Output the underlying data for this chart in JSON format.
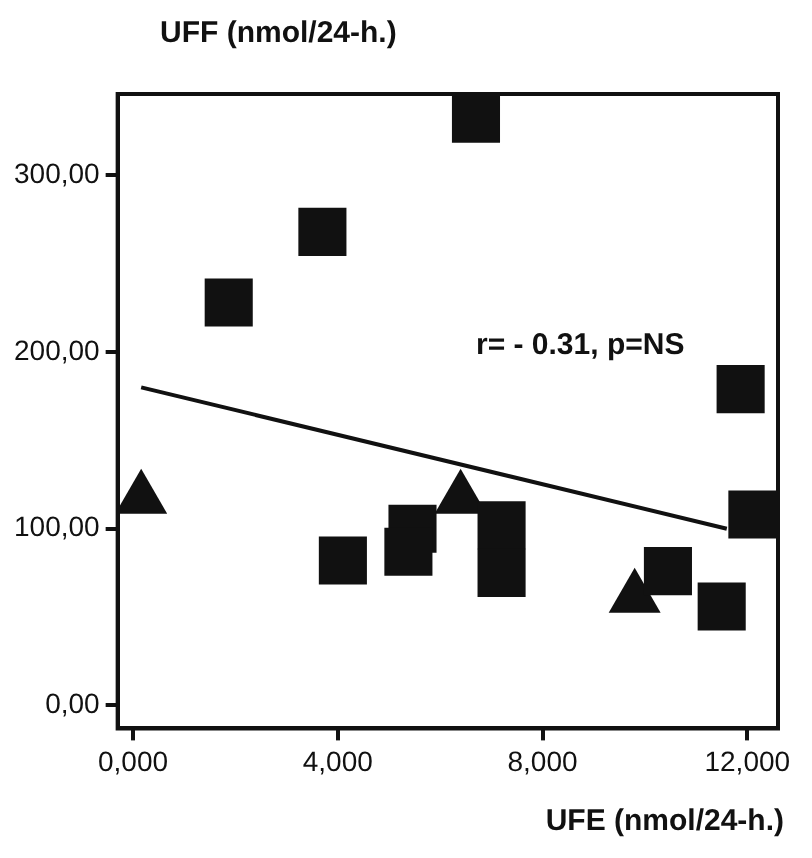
{
  "chart_data": {
    "type": "scatter",
    "xlabel": "UFE (nmol/24-h.)",
    "ylabel": "UFF (nmol/24-h.)",
    "xlim": [
      -0.3,
      12.6
    ],
    "ylim": [
      -13,
      346
    ],
    "xticks": [
      {
        "value": 0,
        "label": "0,000"
      },
      {
        "value": 4,
        "label": "4,000"
      },
      {
        "value": 8,
        "label": "8,000"
      },
      {
        "value": 12,
        "label": "12,000"
      }
    ],
    "yticks": [
      {
        "value": 0,
        "label": "0,00"
      },
      {
        "value": 100,
        "label": "100,00"
      },
      {
        "value": 200,
        "label": "200,00"
      },
      {
        "value": 300,
        "label": "300,00"
      }
    ],
    "grid": false,
    "legend": false,
    "annotations": [
      "r= - 0.31, p=NS"
    ],
    "series": [
      {
        "type": "scatter",
        "marker": "square",
        "color": "#111111",
        "x": [
          1.87,
          3.7,
          6.7,
          11.87,
          4.1,
          5.46,
          5.38,
          7.2,
          7.2,
          10.45,
          11.5,
          12.1
        ],
        "values": [
          228,
          268,
          332,
          179,
          82,
          100,
          87,
          102,
          75,
          76,
          56,
          108
        ]
      },
      {
        "type": "scatter",
        "marker": "triangle",
        "color": "#111111",
        "x": [
          0.16,
          6.4,
          9.8
        ],
        "values": [
          117,
          117,
          61
        ]
      },
      {
        "type": "line",
        "marker": "none",
        "line_style": "solid",
        "color": "#111111",
        "x": [
          0.16,
          11.6
        ],
        "values": [
          180,
          100
        ]
      }
    ]
  }
}
